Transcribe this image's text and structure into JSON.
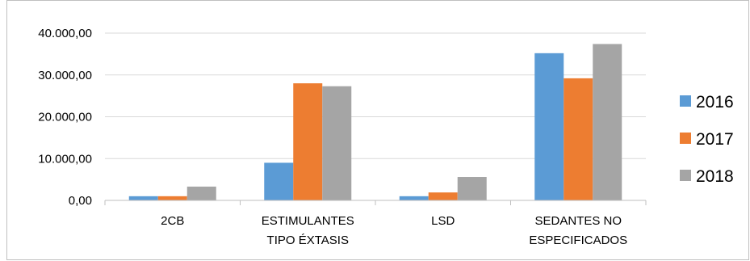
{
  "chart_data": {
    "type": "bar",
    "categories": [
      [
        "2CB"
      ],
      [
        "ESTIMULANTES",
        "TIPO ÉXTASIS"
      ],
      [
        "LSD"
      ],
      [
        "SEDANTES NO",
        "ESPECIFICADOS"
      ]
    ],
    "series": [
      {
        "name": "2016",
        "color": "#5b9bd5",
        "values": [
          1000,
          9000,
          1000,
          35200
        ]
      },
      {
        "name": "2017",
        "color": "#ed7d31",
        "values": [
          1000,
          28000,
          1900,
          29200
        ]
      },
      {
        "name": "2018",
        "color": "#a5a5a5",
        "values": [
          3300,
          27300,
          5600,
          37400
        ]
      }
    ],
    "yticks": [
      "0,00",
      "10.000,00",
      "20.000,00",
      "30.000,00",
      "40.000,00"
    ],
    "ylim": [
      0,
      40000
    ],
    "grid": true,
    "legend": "right"
  }
}
